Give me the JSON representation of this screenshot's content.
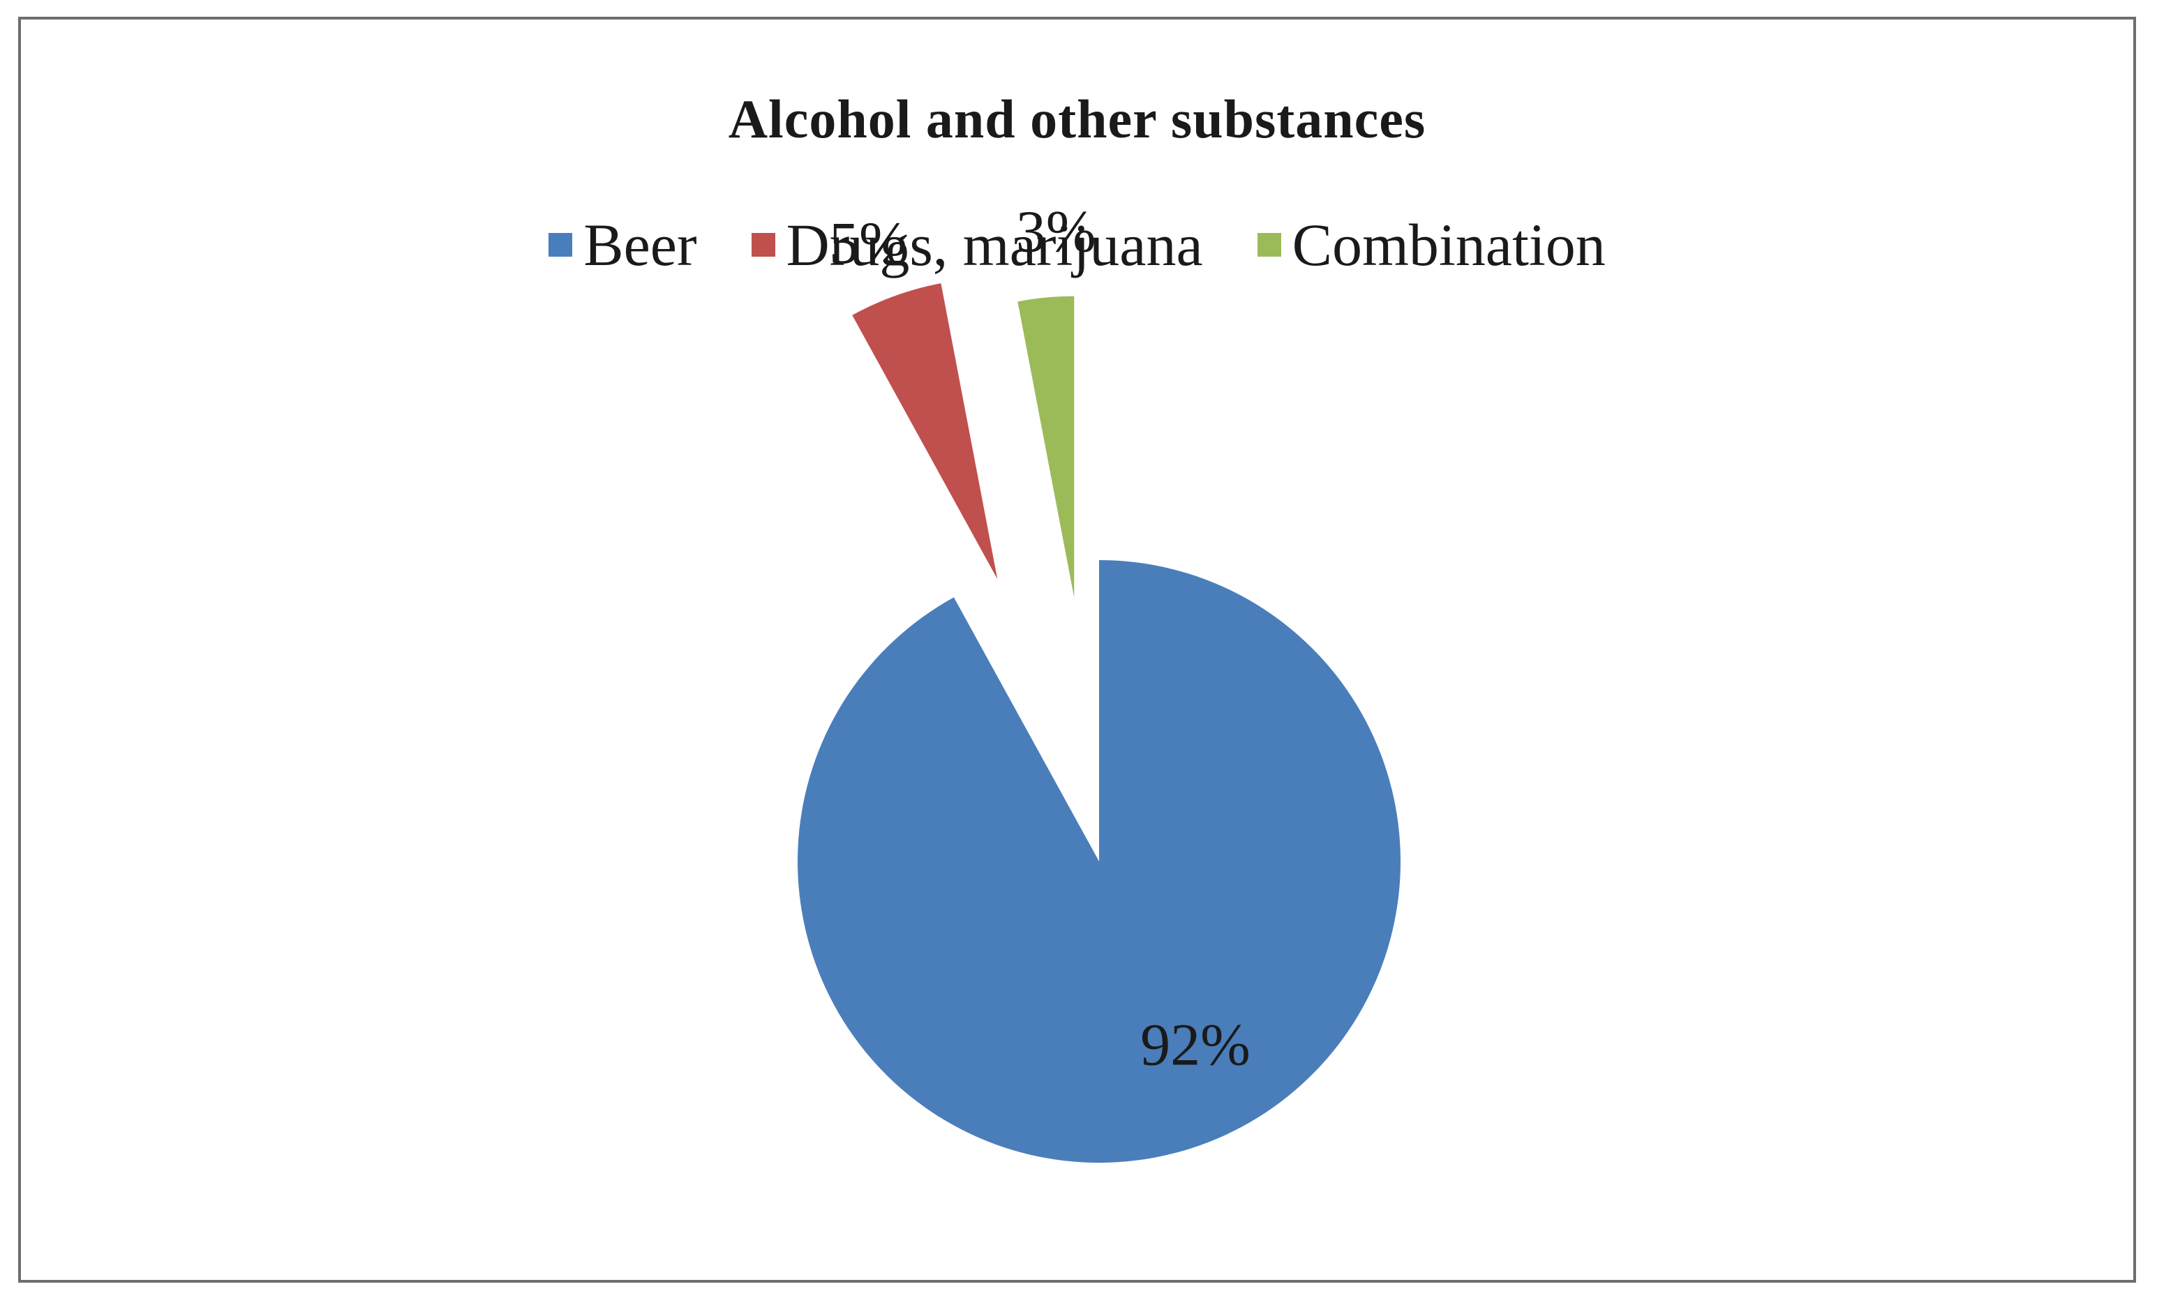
{
  "chart_data": {
    "type": "pie",
    "title": "Alcohol and other substances",
    "legend_position": "top",
    "exploded": true,
    "categories": [
      "Beer",
      "Drugs, marijuana",
      "Combination"
    ],
    "values": [
      92,
      5,
      3
    ],
    "labels": [
      "92%",
      "5%",
      "3%"
    ],
    "colors": [
      "#4a7ebb",
      "#c0504d",
      "#9bbb59"
    ]
  }
}
